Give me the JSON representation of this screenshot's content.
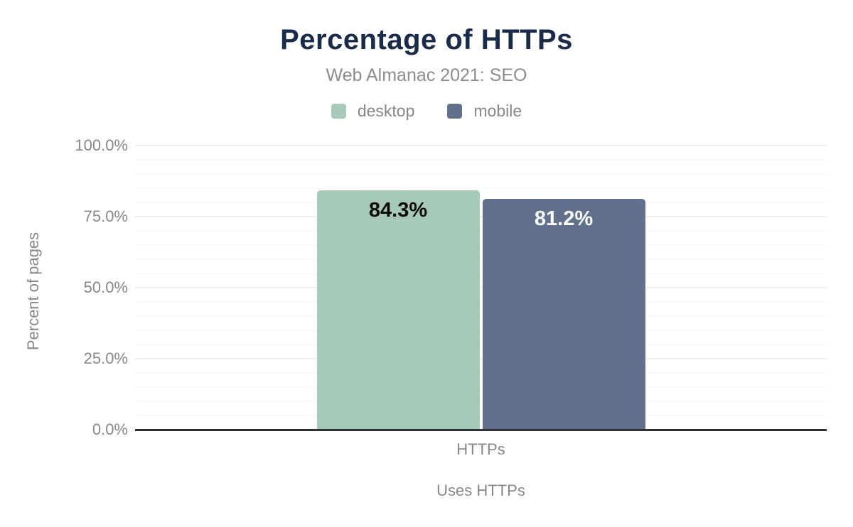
{
  "chart_data": {
    "type": "bar",
    "title": "Percentage of HTTPs",
    "subtitle": "Web Almanac 2021: SEO",
    "categories": [
      "HTTPs"
    ],
    "series": [
      {
        "name": "desktop",
        "values": [
          84.3
        ],
        "value_labels": [
          "84.3%"
        ],
        "color": "#a7c9b8",
        "label_color": "#0b0b0b"
      },
      {
        "name": "mobile",
        "values": [
          81.2
        ],
        "value_labels": [
          "81.2%"
        ],
        "color": "#61708b",
        "label_color": "#ffffff"
      }
    ],
    "xlabel": "Uses HTTPs",
    "ylabel": "Percent of pages",
    "ylim": [
      0,
      100
    ],
    "yticks": [
      {
        "value": 0,
        "label": "0.0%"
      },
      {
        "value": 25,
        "label": "25.0%"
      },
      {
        "value": 50,
        "label": "50.0%"
      },
      {
        "value": 75,
        "label": "75.0%"
      },
      {
        "value": 100,
        "label": "100.0%"
      }
    ],
    "grid": {
      "minor_step": 5,
      "major_step": 25,
      "major_color": "#efefef",
      "minor_color": "#fafafa"
    },
    "legend_position": "top",
    "colors": {
      "title": "#1a2b49",
      "muted_text": "#85888c",
      "axis_line": "#2e3236",
      "background": "#ffffff"
    }
  }
}
